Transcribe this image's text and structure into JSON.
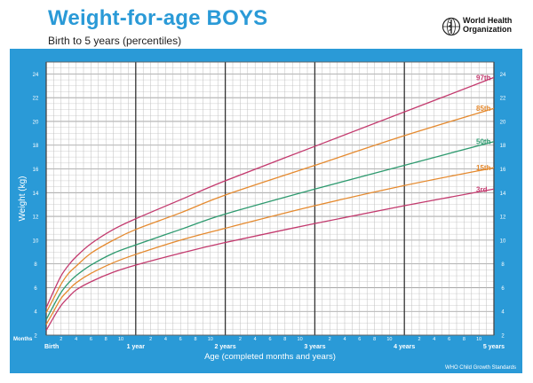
{
  "header": {
    "title": "Weight-for-age BOYS",
    "subtitle": "Birth to 5 years (percentiles)",
    "org_line1": "World Health",
    "org_line2": "Organization"
  },
  "footer": {
    "standards": "WHO Child Growth Standards"
  },
  "colors": {
    "frame": "#2a9ad7",
    "p97": "#c33a6e",
    "p85": "#e58a2f",
    "p50": "#2e9a6f",
    "p15": "#e58a2f",
    "p3": "#c33a6e"
  },
  "chart_data": {
    "type": "line",
    "xlabel": "Age (completed months and years)",
    "ylabel": "Weight (kg)",
    "x_unit_label": "Months",
    "xlim": [
      0,
      60
    ],
    "ylim": [
      2,
      25
    ],
    "y_ticks": [
      2,
      4,
      6,
      8,
      10,
      12,
      14,
      16,
      18,
      20,
      22,
      24
    ],
    "x_major_labels": [
      {
        "month": 0,
        "label": "Birth"
      },
      {
        "month": 12,
        "label": "1 year"
      },
      {
        "month": 24,
        "label": "2 years"
      },
      {
        "month": 36,
        "label": "3 years"
      },
      {
        "month": 48,
        "label": "4 years"
      },
      {
        "month": 60,
        "label": "5 years"
      }
    ],
    "x_minor_labels": [
      2,
      4,
      6,
      8,
      10
    ],
    "grid": true,
    "series": [
      {
        "name": "97th",
        "color_key": "p97",
        "x": [
          0,
          1,
          2,
          3,
          4,
          6,
          9,
          12,
          18,
          24,
          36,
          48,
          60
        ],
        "y": [
          4.3,
          5.7,
          7.0,
          7.9,
          8.6,
          9.7,
          10.9,
          11.8,
          13.4,
          15.0,
          17.9,
          20.8,
          23.7
        ]
      },
      {
        "name": "85th",
        "color_key": "p85",
        "x": [
          0,
          1,
          2,
          3,
          4,
          6,
          9,
          12,
          18,
          24,
          36,
          48,
          60
        ],
        "y": [
          3.9,
          5.1,
          6.3,
          7.2,
          7.8,
          8.9,
          10.0,
          10.9,
          12.3,
          13.8,
          16.3,
          18.8,
          21.1
        ]
      },
      {
        "name": "50th",
        "color_key": "p50",
        "x": [
          0,
          1,
          2,
          3,
          4,
          6,
          9,
          12,
          18,
          24,
          36,
          48,
          60
        ],
        "y": [
          3.3,
          4.5,
          5.6,
          6.4,
          7.0,
          7.9,
          8.9,
          9.6,
          10.9,
          12.2,
          14.3,
          16.3,
          18.3
        ]
      },
      {
        "name": "15th",
        "color_key": "p15",
        "x": [
          0,
          1,
          2,
          3,
          4,
          6,
          9,
          12,
          18,
          24,
          36,
          48,
          60
        ],
        "y": [
          2.9,
          4.0,
          5.1,
          5.8,
          6.4,
          7.2,
          8.1,
          8.8,
          10.0,
          11.0,
          12.9,
          14.6,
          16.1
        ]
      },
      {
        "name": "3rd",
        "color_key": "p3",
        "x": [
          0,
          1,
          2,
          3,
          4,
          6,
          9,
          12,
          18,
          24,
          36,
          48,
          60
        ],
        "y": [
          2.4,
          3.5,
          4.5,
          5.2,
          5.8,
          6.5,
          7.3,
          7.9,
          8.9,
          9.8,
          11.4,
          12.9,
          14.3
        ]
      }
    ]
  }
}
